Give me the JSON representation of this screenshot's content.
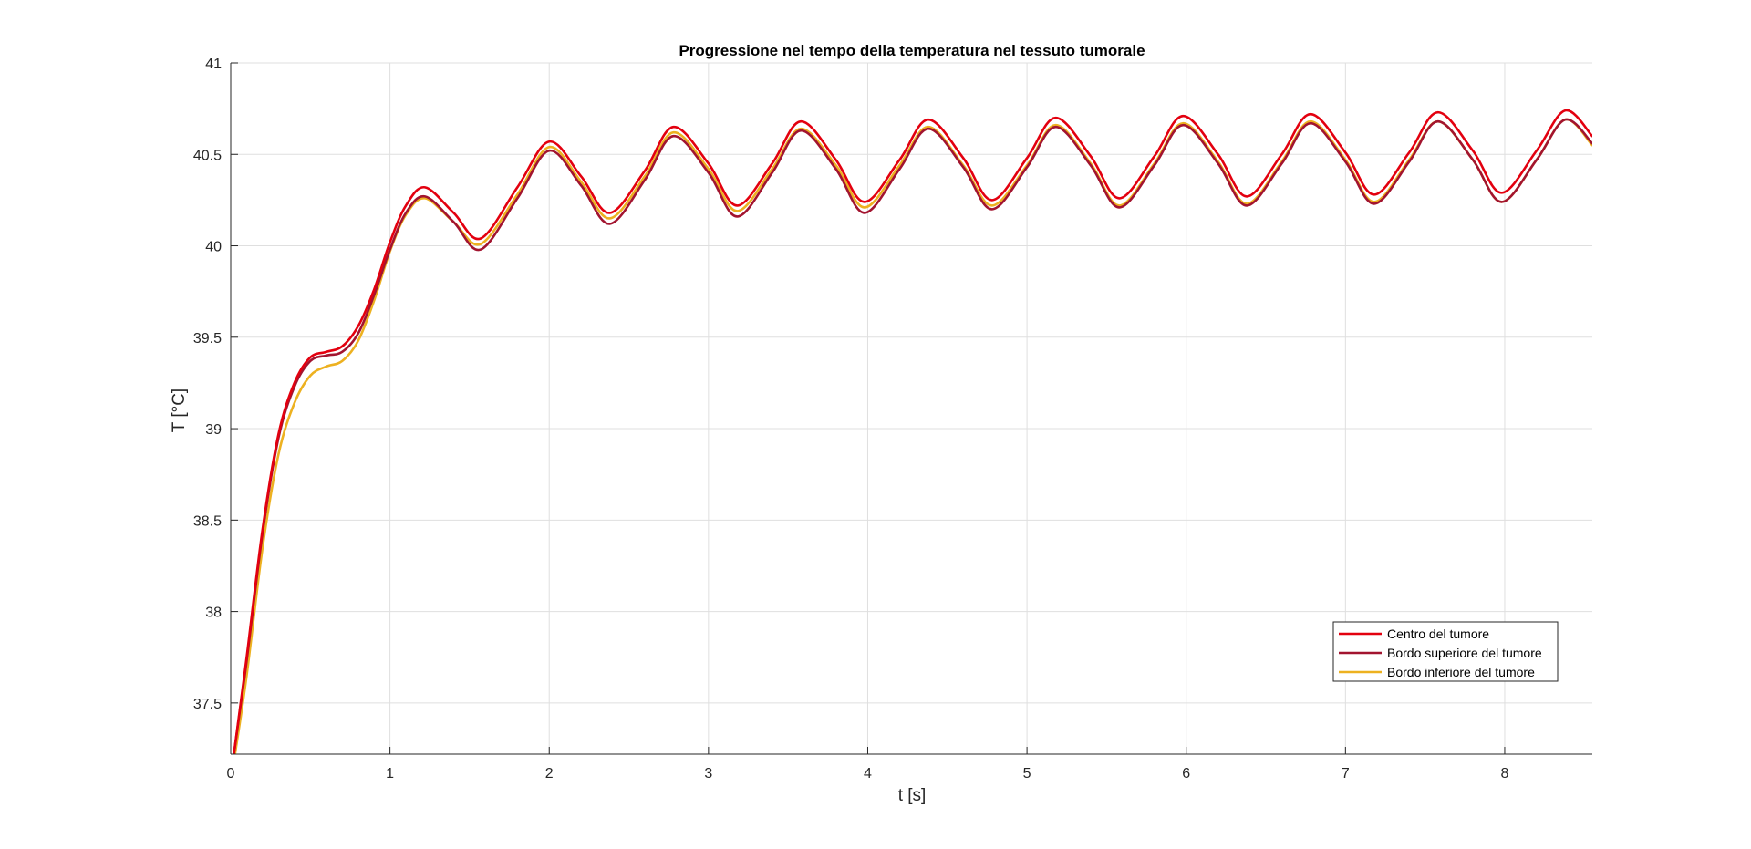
{
  "chart_data": {
    "type": "line",
    "title": "Progressione nel tempo della temperatura nel tessuto tumorale",
    "xlabel": "t [s]",
    "ylabel": "T [°C]",
    "xlim": [
      0,
      8.55
    ],
    "ylim": [
      37.22,
      41
    ],
    "x_ticks": [
      0,
      1,
      2,
      3,
      4,
      5,
      6,
      7,
      8
    ],
    "x_tick_labels": [
      "0",
      "1",
      "2",
      "3",
      "4",
      "5",
      "6",
      "7",
      "8"
    ],
    "y_ticks": [
      37.5,
      38,
      38.5,
      39,
      39.5,
      40,
      40.5,
      41
    ],
    "y_tick_labels": [
      "37.5",
      "38",
      "38.5",
      "39",
      "39.5",
      "40",
      "40.5",
      "41"
    ],
    "grid": true,
    "legend_position": "bottom-right",
    "series": [
      {
        "name": "Centro del tumore",
        "color": "#e3000f",
        "x": [
          0.02,
          0.1,
          0.2,
          0.3,
          0.4,
          0.5,
          0.6,
          0.7,
          0.8,
          0.9,
          1.0,
          1.1,
          1.22,
          1.4,
          1.57,
          1.8,
          2.0,
          2.2,
          2.38,
          2.6,
          2.78,
          3.0,
          3.18,
          3.4,
          3.58,
          3.8,
          3.98,
          4.2,
          4.38,
          4.6,
          4.78,
          5.0,
          5.18,
          5.4,
          5.58,
          5.8,
          5.98,
          6.2,
          6.38,
          6.6,
          6.78,
          7.0,
          7.18,
          7.4,
          7.58,
          7.8,
          7.98,
          8.2,
          8.38,
          8.55
        ],
        "y": [
          37.22,
          37.75,
          38.45,
          38.97,
          39.25,
          39.39,
          39.42,
          39.45,
          39.56,
          39.76,
          40.02,
          40.22,
          40.32,
          40.18,
          40.04,
          40.32,
          40.57,
          40.38,
          40.18,
          40.41,
          40.65,
          40.45,
          40.22,
          40.45,
          40.68,
          40.47,
          40.24,
          40.47,
          40.69,
          40.48,
          40.25,
          40.48,
          40.7,
          40.49,
          40.26,
          40.49,
          40.71,
          40.5,
          40.27,
          40.5,
          40.72,
          40.51,
          40.28,
          40.51,
          40.73,
          40.52,
          40.29,
          40.52,
          40.74,
          40.6
        ]
      },
      {
        "name": "Bordo superiore del tumore",
        "color": "#a2142f",
        "x": [
          0.02,
          0.1,
          0.2,
          0.3,
          0.4,
          0.5,
          0.6,
          0.7,
          0.8,
          0.9,
          1.0,
          1.1,
          1.22,
          1.4,
          1.57,
          1.8,
          2.0,
          2.2,
          2.38,
          2.6,
          2.78,
          3.0,
          3.18,
          3.4,
          3.58,
          3.8,
          3.98,
          4.2,
          4.38,
          4.6,
          4.78,
          5.0,
          5.18,
          5.4,
          5.58,
          5.8,
          5.98,
          6.2,
          6.38,
          6.6,
          6.78,
          7.0,
          7.18,
          7.4,
          7.58,
          7.8,
          7.98,
          8.2,
          8.38,
          8.55
        ],
        "y": [
          37.22,
          37.73,
          38.43,
          38.95,
          39.23,
          39.37,
          39.4,
          39.42,
          39.52,
          39.73,
          39.98,
          40.18,
          40.27,
          40.13,
          39.98,
          40.26,
          40.52,
          40.33,
          40.12,
          40.36,
          40.6,
          40.4,
          40.16,
          40.4,
          40.63,
          40.42,
          40.18,
          40.42,
          40.64,
          40.43,
          40.2,
          40.43,
          40.65,
          40.44,
          40.21,
          40.44,
          40.66,
          40.45,
          40.22,
          40.45,
          40.67,
          40.46,
          40.23,
          40.46,
          40.68,
          40.47,
          40.24,
          40.47,
          40.69,
          40.56
        ]
      },
      {
        "name": "Bordo inferiore del tumore",
        "color": "#edb120",
        "x": [
          0.02,
          0.1,
          0.2,
          0.3,
          0.4,
          0.5,
          0.6,
          0.7,
          0.8,
          0.9,
          1.0,
          1.1,
          1.22,
          1.4,
          1.57,
          1.8,
          2.0,
          2.2,
          2.38,
          2.6,
          2.78,
          3.0,
          3.18,
          3.4,
          3.58,
          3.8,
          3.98,
          4.2,
          4.38,
          4.6,
          4.78,
          5.0,
          5.18,
          5.4,
          5.58,
          5.8,
          5.98,
          6.2,
          6.38,
          6.6,
          6.78,
          7.0,
          7.18,
          7.4,
          7.58,
          7.8,
          7.98,
          8.2,
          8.38,
          8.55
        ],
        "y": [
          37.18,
          37.65,
          38.35,
          38.86,
          39.14,
          39.29,
          39.34,
          39.37,
          39.48,
          39.7,
          39.97,
          40.17,
          40.26,
          40.13,
          40.01,
          40.28,
          40.54,
          40.35,
          40.15,
          40.38,
          40.62,
          40.42,
          40.19,
          40.42,
          40.64,
          40.44,
          40.21,
          40.44,
          40.65,
          40.44,
          40.22,
          40.44,
          40.66,
          40.45,
          40.22,
          40.45,
          40.67,
          40.46,
          40.23,
          40.46,
          40.68,
          40.47,
          40.24,
          40.47,
          40.68,
          40.47,
          40.24,
          40.47,
          40.69,
          40.55
        ]
      }
    ]
  }
}
